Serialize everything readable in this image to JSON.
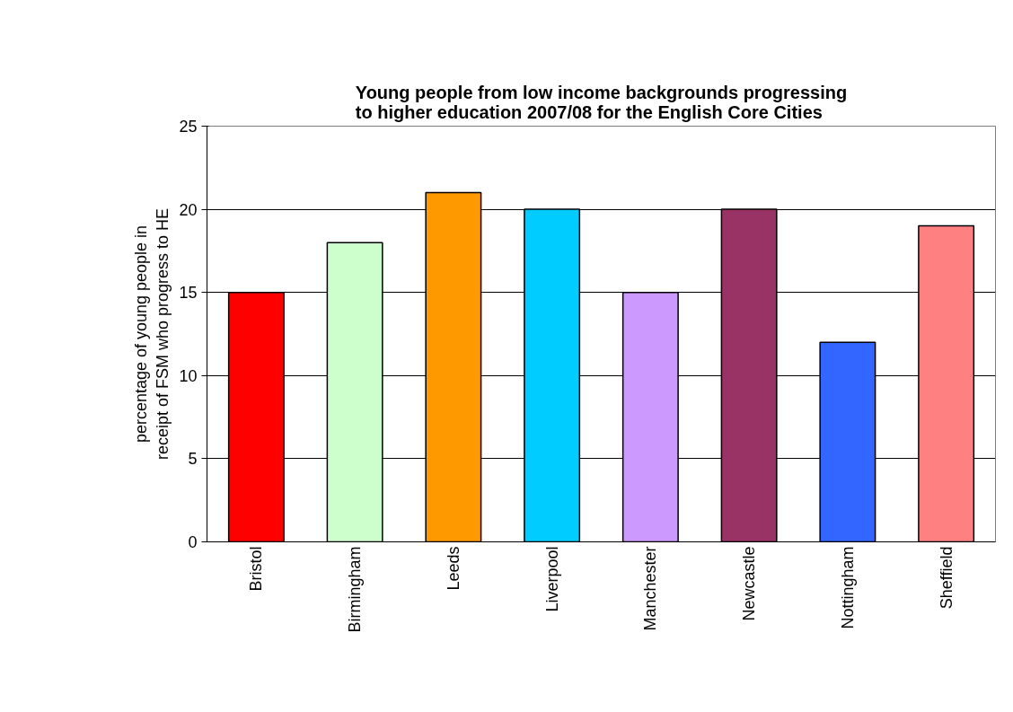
{
  "chart_data": {
    "type": "bar",
    "title": "Young people from low income backgrounds progressing to higher education 2007/08 for the English Core Cities",
    "ylabel": "percentage of young people in receipt of FSM who progress to HE",
    "categories": [
      "Bristol",
      "Birmingham",
      "Leeds",
      "Liverpool",
      "Manchester",
      "Newcastle",
      "Nottingham",
      "Sheffield"
    ],
    "values": [
      15,
      18,
      21,
      20,
      15,
      20,
      12,
      19
    ],
    "colors": [
      "#ff0000",
      "#ccffcc",
      "#ff9900",
      "#00ccff",
      "#cc99ff",
      "#993366",
      "#3366ff",
      "#ff8080"
    ],
    "ylim": [
      0,
      25
    ],
    "yticks": [
      0,
      5,
      10,
      15,
      20,
      25
    ],
    "grid": "y"
  }
}
